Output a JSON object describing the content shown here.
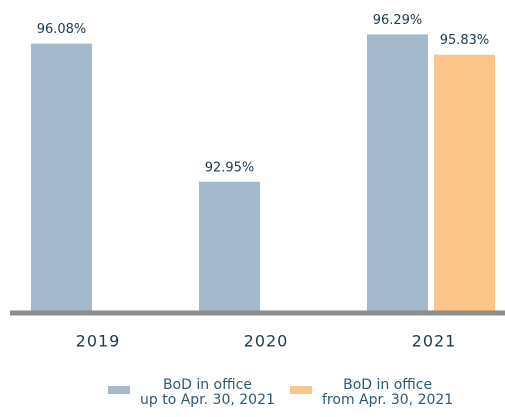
{
  "chart_data": {
    "type": "bar",
    "categories": [
      "2019",
      "2020",
      "2021"
    ],
    "series": [
      {
        "name": "BoD in office\nup to Apr. 30, 2021",
        "color": "#a5b9cc",
        "values": [
          96.08,
          92.95,
          96.29
        ],
        "value_labels": [
          "96.08%",
          "92.95%",
          "96.29%"
        ]
      },
      {
        "name": "BoD in office\nfrom Apr. 30, 2021",
        "color": "#fcc68b",
        "values": [
          null,
          null,
          95.83
        ],
        "value_labels": [
          null,
          null,
          "95.83%"
        ]
      }
    ],
    "ylim": [
      90,
      97
    ]
  }
}
